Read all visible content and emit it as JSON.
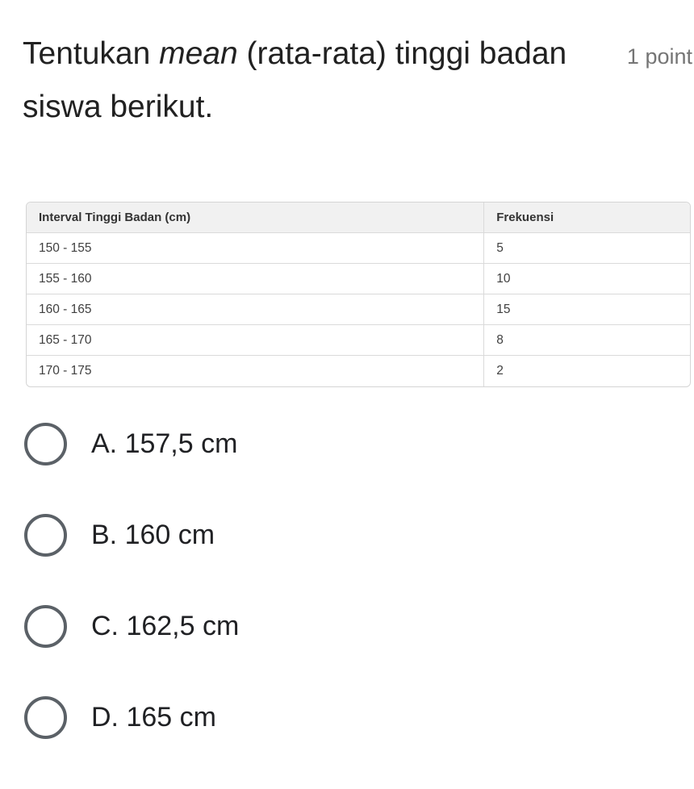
{
  "question": {
    "title_prefix": "Tentukan ",
    "title_italic": "mean",
    "title_suffix": " (rata-rata) tinggi badan siswa berikut.",
    "points_label": "1 point"
  },
  "table": {
    "headers": [
      "Interval Tinggi Badan (cm)",
      "Frekuensi"
    ],
    "rows": [
      [
        "150 - 155",
        "5"
      ],
      [
        "155 - 160",
        "10"
      ],
      [
        "160 - 165",
        "15"
      ],
      [
        "165 - 170",
        "8"
      ],
      [
        "170 - 175",
        "2"
      ]
    ]
  },
  "chart_data": {
    "type": "table",
    "title": "Interval Tinggi Badan (cm) vs Frekuensi",
    "categories": [
      "150 - 155",
      "155 - 160",
      "160 - 165",
      "165 - 170",
      "170 - 175"
    ],
    "values": [
      5,
      10,
      15,
      8,
      2
    ]
  },
  "options": [
    {
      "label": "A. 157,5 cm"
    },
    {
      "label": "B. 160 cm"
    },
    {
      "label": "C. 162,5 cm"
    },
    {
      "label": "D. 165 cm"
    }
  ],
  "colors": {
    "title_text": "#212121",
    "points_text": "#757575",
    "table_border": "#d5d5d5",
    "table_header_bg": "#f1f1f1",
    "table_text": "#3f3f3f",
    "radio_stroke": "#5b6167",
    "option_text": "#202124",
    "background": "#ffffff"
  }
}
